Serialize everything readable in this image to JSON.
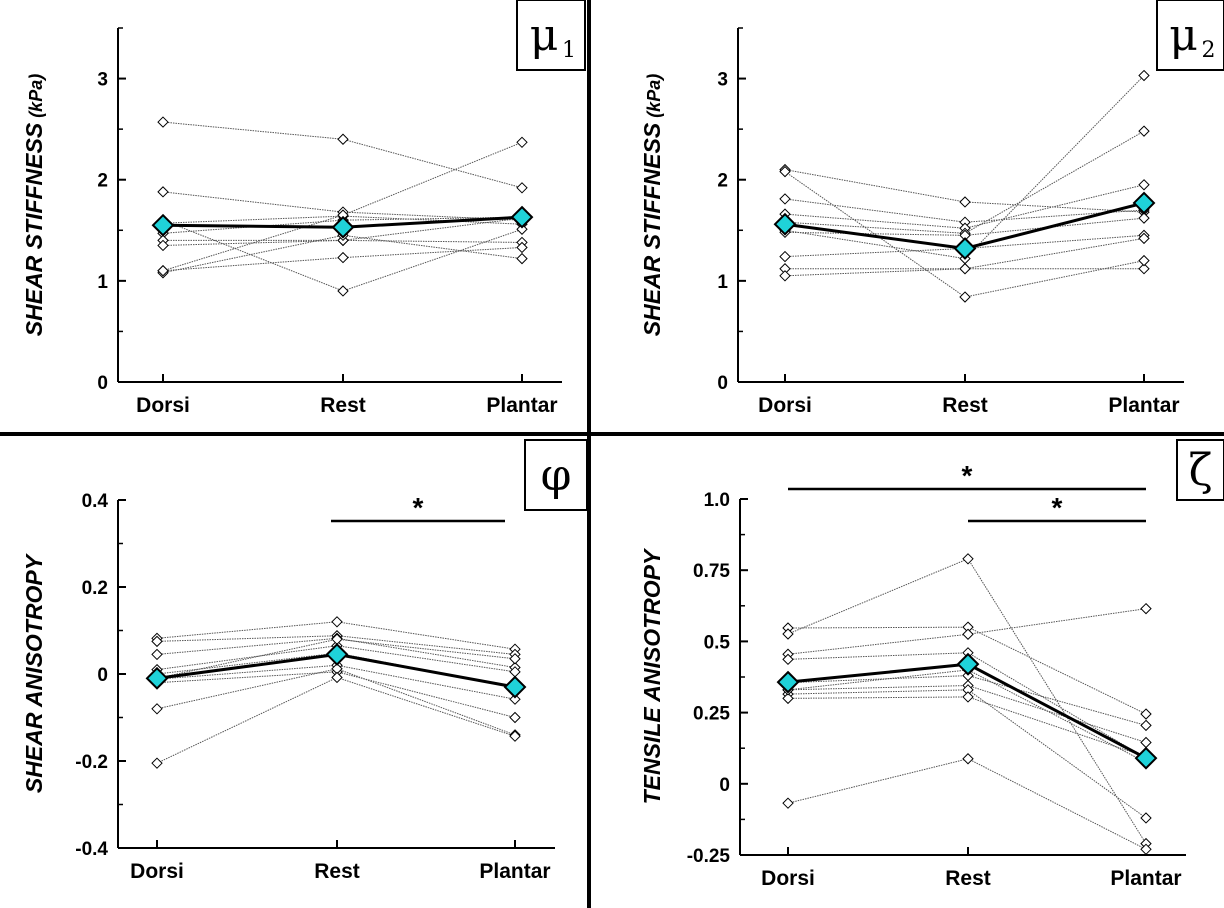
{
  "colors": {
    "mean_fill": "#1fd2d9",
    "subject_line": "#555555",
    "axis": "#000000"
  },
  "chart_data": [
    {
      "id": "mu1",
      "type": "line",
      "panel_symbol": "μ",
      "panel_subscript": "1",
      "ylabel": "SHEAR STIFFNESS",
      "ylabel_unit": "(kPa)",
      "xlabel": "",
      "categories": [
        "Dorsi",
        "Rest",
        "Plantar"
      ],
      "ylim": [
        0,
        3.5
      ],
      "yticks": [
        0,
        1,
        2,
        3
      ],
      "ytick_labels": [
        "0",
        "1",
        "2",
        "3"
      ],
      "subjects": [
        [
          2.57,
          2.4,
          1.92
        ],
        [
          1.88,
          1.68,
          1.6
        ],
        [
          1.57,
          1.64,
          1.56
        ],
        [
          1.47,
          1.6,
          1.63
        ],
        [
          1.4,
          1.4,
          1.62
        ],
        [
          1.35,
          1.4,
          1.38
        ],
        [
          1.1,
          1.23,
          1.33
        ],
        [
          1.08,
          1.45,
          1.22
        ],
        [
          1.6,
          0.9,
          1.51
        ],
        [
          1.1,
          1.65,
          2.37
        ]
      ],
      "mean": [
        1.55,
        1.53,
        1.63
      ],
      "significance": []
    },
    {
      "id": "mu2",
      "type": "line",
      "panel_symbol": "μ",
      "panel_subscript": "2",
      "ylabel": "SHEAR STIFFNESS",
      "ylabel_unit": "(kPa)",
      "xlabel": "",
      "categories": [
        "Dorsi",
        "Rest",
        "Plantar"
      ],
      "ylim": [
        0,
        3.5
      ],
      "yticks": [
        0,
        1,
        2,
        3
      ],
      "ytick_labels": [
        "0",
        "1",
        "2",
        "3"
      ],
      "subjects": [
        [
          2.1,
          1.78,
          1.68
        ],
        [
          1.81,
          1.58,
          1.7
        ],
        [
          1.66,
          1.52,
          1.95
        ],
        [
          1.58,
          1.47,
          2.48
        ],
        [
          1.5,
          1.22,
          3.03
        ],
        [
          1.48,
          1.45,
          1.62
        ],
        [
          1.24,
          1.32,
          1.45
        ],
        [
          1.12,
          1.12,
          1.42
        ],
        [
          1.05,
          1.12,
          1.12
        ],
        [
          2.08,
          0.84,
          1.2
        ]
      ],
      "mean": [
        1.56,
        1.32,
        1.77
      ],
      "significance": []
    },
    {
      "id": "phi",
      "type": "line",
      "panel_symbol": "φ",
      "panel_subscript": "",
      "ylabel": "SHEAR ANISOTROPY",
      "ylabel_unit": "",
      "xlabel": "",
      "categories": [
        "Dorsi",
        "Rest",
        "Plantar"
      ],
      "ylim": [
        -0.4,
        0.4
      ],
      "yticks": [
        -0.4,
        -0.2,
        0,
        0.2,
        0.4
      ],
      "ytick_labels": [
        "-0.4",
        "-0.2",
        "0",
        "0.2",
        "0.4"
      ],
      "subjects": [
        [
          0.082,
          0.12,
          0.057
        ],
        [
          0.075,
          0.088,
          0.045
        ],
        [
          0.045,
          0.082,
          0.015
        ],
        [
          0.01,
          0.065,
          0.005
        ],
        [
          0.0,
          0.048,
          -0.03
        ],
        [
          -0.012,
          0.02,
          -0.058
        ],
        [
          -0.02,
          0.005,
          -0.1
        ],
        [
          -0.08,
          0.012,
          -0.14
        ],
        [
          -0.205,
          -0.008,
          -0.143
        ],
        [
          -0.01,
          0.08,
          0.035
        ]
      ],
      "mean": [
        -0.01,
        0.045,
        -0.03
      ],
      "significance": [
        {
          "from": 1,
          "to": 2,
          "label": "*"
        }
      ]
    },
    {
      "id": "zeta",
      "type": "line",
      "panel_symbol": "ζ",
      "panel_subscript": "",
      "ylabel": "TENSILE ANISOTROPY",
      "ylabel_unit": "",
      "xlabel": "",
      "categories": [
        "Dorsi",
        "Rest",
        "Plantar"
      ],
      "ylim": [
        -0.25,
        1.0
      ],
      "yticks": [
        -0.25,
        0,
        0.25,
        0.5,
        0.75,
        1.0
      ],
      "ytick_labels": [
        "-0.25",
        "0",
        "0.25",
        "0.5",
        "0.75",
        "1.0"
      ],
      "subjects": [
        [
          0.547,
          0.55,
          0.245
        ],
        [
          0.526,
          0.79,
          -0.21
        ],
        [
          0.455,
          0.525,
          0.615
        ],
        [
          0.437,
          0.46,
          0.09
        ],
        [
          0.355,
          0.38,
          0.205
        ],
        [
          0.33,
          0.345,
          0.145
        ],
        [
          0.315,
          0.33,
          -0.12
        ],
        [
          0.3,
          0.305,
          0.095
        ],
        [
          -0.068,
          0.088,
          -0.23
        ],
        [
          0.33,
          0.4,
          0.075
        ]
      ],
      "mean": [
        0.357,
        0.42,
        0.09
      ],
      "significance": [
        {
          "from": 0,
          "to": 2,
          "label": "*"
        },
        {
          "from": 1,
          "to": 2,
          "label": "*"
        }
      ]
    }
  ]
}
